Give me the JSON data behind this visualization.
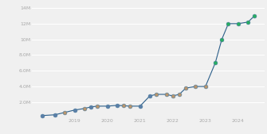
{
  "x": [
    2018.0,
    2018.4,
    2018.7,
    2019.0,
    2019.3,
    2019.5,
    2019.7,
    2020.0,
    2020.3,
    2020.5,
    2020.7,
    2021.0,
    2021.3,
    2021.5,
    2021.8,
    2022.0,
    2022.2,
    2022.4,
    2022.7,
    2023.0,
    2023.3,
    2023.5,
    2023.7,
    2024.0,
    2024.3,
    2024.5
  ],
  "y": [
    300000,
    400000,
    700000,
    1000000,
    1200000,
    1400000,
    1500000,
    1500000,
    1600000,
    1550000,
    1500000,
    1500000,
    2800000,
    3000000,
    3000000,
    2800000,
    3000000,
    3800000,
    4000000,
    4000000,
    7000000,
    10000000,
    12000000,
    12000000,
    12200000,
    13000000
  ],
  "marker_colors": [
    "#5b7fa8",
    "#5b7fa8",
    "#b8956e",
    "#5b7fa8",
    "#b8956e",
    "#5b7fa8",
    "#b8956e",
    "#5b7fa8",
    "#5b7fa8",
    "#b8956e",
    "#b8956e",
    "#5b7fa8",
    "#5b7fa8",
    "#b8956e",
    "#b8956e",
    "#b8956e",
    "#b8956e",
    "#b8956e",
    "#b8956e",
    "#b8956e",
    "#27ae60",
    "#27ae60",
    "#27ae60",
    "#27ae60",
    "#27ae60",
    "#27ae60"
  ],
  "line_color": "#2c5f8a",
  "background_color": "#f0f0f0",
  "grid_color": "#ffffff",
  "ytick_labels": [
    "2.0M",
    "4.0M",
    "6.0M",
    "8.0M",
    "10M",
    "12M",
    "14M"
  ],
  "ytick_values": [
    2000000,
    4000000,
    6000000,
    8000000,
    10000000,
    12000000,
    14000000
  ],
  "xtick_labels": [
    "2019",
    "2020",
    "2021",
    "2022",
    "2023",
    "2024"
  ],
  "xtick_values": [
    2019,
    2020,
    2021,
    2022,
    2023,
    2024
  ],
  "ylim": [
    0,
    14500000
  ],
  "xlim": [
    2017.7,
    2024.8
  ]
}
